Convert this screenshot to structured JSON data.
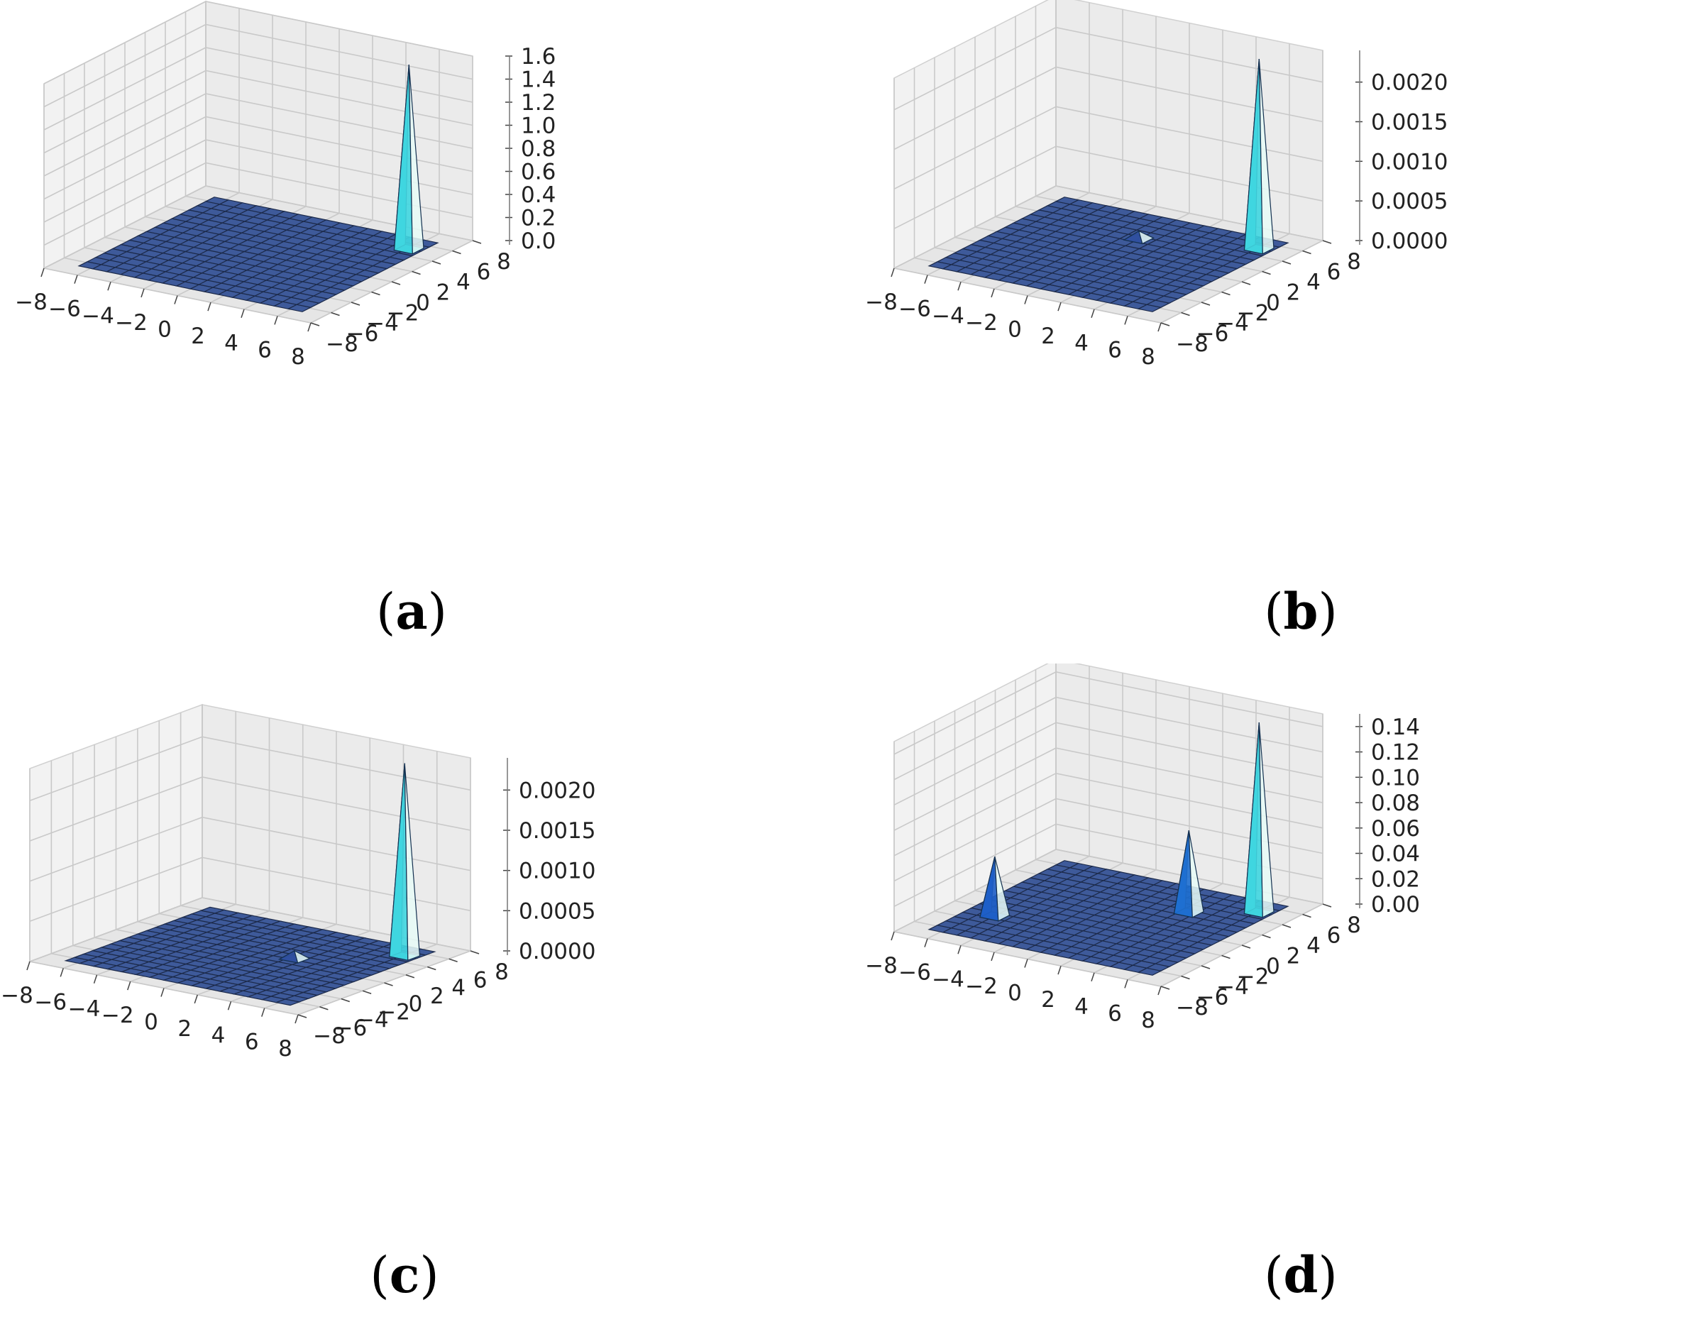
{
  "chart_data": [
    {
      "type": "surface",
      "caption": "a",
      "xticks": [
        "−8",
        "−6",
        "−4",
        "−2",
        "0",
        "2",
        "4",
        "6",
        "8"
      ],
      "yticks": [
        "−8",
        "−6",
        "−4",
        "−2",
        "0",
        "2",
        "4",
        "6",
        "8"
      ],
      "zticks": [
        "0.0",
        "0.2",
        "0.4",
        "0.6",
        "0.8",
        "1.0",
        "1.2",
        "1.4",
        "1.6"
      ],
      "xlim": [
        -8,
        8
      ],
      "ylim": [
        -8,
        8
      ],
      "zlim": [
        0,
        1.6
      ],
      "peaks": [
        {
          "x": 6,
          "y": 5,
          "height": 1.6,
          "color": "#3fd6e0"
        }
      ]
    },
    {
      "type": "surface",
      "caption": "b",
      "xticks": [
        "−8",
        "−6",
        "−4",
        "−2",
        "0",
        "2",
        "4",
        "6",
        "8"
      ],
      "yticks": [
        "−8",
        "−6",
        "−4",
        "−2",
        "0",
        "2",
        "4",
        "6",
        "8"
      ],
      "zticks": [
        "0.0000",
        "0.0005",
        "0.0010",
        "0.0015",
        "0.0020"
      ],
      "xlim": [
        -8,
        8
      ],
      "ylim": [
        -8,
        8
      ],
      "zlim": [
        0,
        0.0024
      ],
      "peaks": [
        {
          "x": 6,
          "y": 5,
          "height": 0.0024,
          "color": "#3fd6e0"
        },
        {
          "x": 0,
          "y": 3,
          "height": 0.0001,
          "color": "#3050a0"
        }
      ]
    },
    {
      "type": "surface",
      "caption": "c",
      "xticks": [
        "−8",
        "−6",
        "−4",
        "−2",
        "0",
        "2",
        "4",
        "6",
        "8"
      ],
      "yticks": [
        "−8",
        "−6",
        "−4",
        "−2",
        "0",
        "2",
        "4",
        "6",
        "8"
      ],
      "zticks": [
        "0.0000",
        "0.0005",
        "0.0010",
        "0.0015",
        "0.0020"
      ],
      "xlim": [
        -8,
        8
      ],
      "ylim": [
        -8,
        8
      ],
      "zlim": [
        0,
        0.0024
      ],
      "peaks": [
        {
          "x": 6,
          "y": 5,
          "height": 0.0024,
          "color": "#3fd6e0"
        },
        {
          "x": 2,
          "y": 1,
          "height": 0.0001,
          "color": "#3050a0"
        }
      ]
    },
    {
      "type": "surface",
      "caption": "d",
      "xticks": [
        "−8",
        "−6",
        "−4",
        "−2",
        "0",
        "2",
        "4",
        "6",
        "8"
      ],
      "yticks": [
        "−8",
        "−6",
        "−4",
        "−2",
        "0",
        "2",
        "4",
        "6",
        "8"
      ],
      "zticks": [
        "0.00",
        "0.02",
        "0.04",
        "0.06",
        "0.08",
        "0.10",
        "0.12",
        "0.14"
      ],
      "xlim": [
        -8,
        8
      ],
      "ylim": [
        -8,
        8
      ],
      "zlim": [
        0,
        0.15
      ],
      "peaks": [
        {
          "x": 6,
          "y": 5,
          "height": 0.15,
          "color": "#3fd6e0"
        },
        {
          "x": 3,
          "y": 3,
          "height": 0.065,
          "color": "#1e6fd0"
        },
        {
          "x": -5,
          "y": -3,
          "height": 0.047,
          "color": "#1e5fc8"
        }
      ]
    }
  ]
}
